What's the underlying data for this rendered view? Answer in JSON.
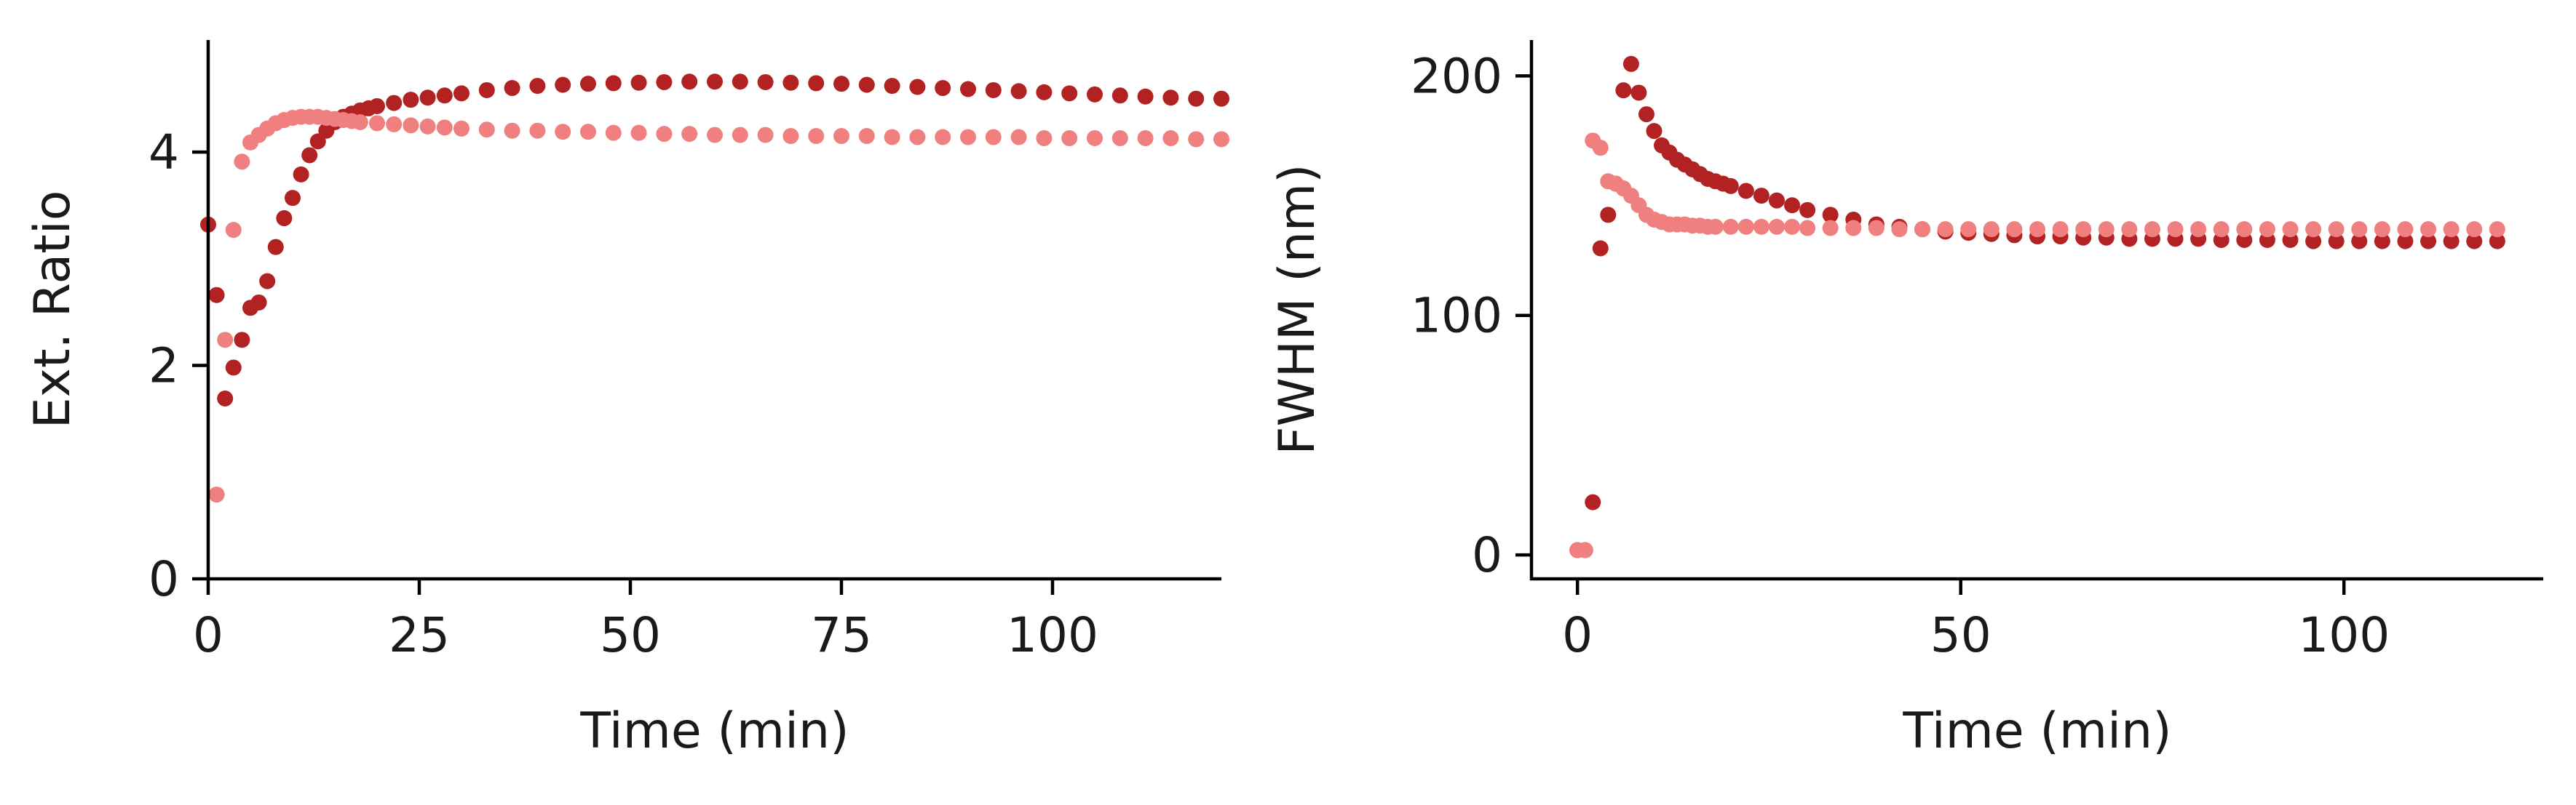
{
  "colors": {
    "series_a": "#b22222",
    "series_b": "#f08080",
    "axes": "#000000",
    "background": "#ffffff"
  },
  "chart_data": [
    {
      "type": "scatter",
      "xlabel": "Time (min)",
      "ylabel": "Ext. Ratio",
      "xlim": [
        0,
        120
      ],
      "ylim": [
        0,
        5.05
      ],
      "xticks": [
        0,
        25,
        50,
        75,
        100
      ],
      "yticks": [
        0,
        2,
        4
      ],
      "xtick_labels": [
        "0",
        "25",
        "50",
        "75",
        "100"
      ],
      "ytick_labels": [
        "0",
        "2",
        "4"
      ],
      "grid": false,
      "legend": "none",
      "series": [
        {
          "color": "#b22222",
          "x": [
            0,
            1,
            2,
            3,
            4,
            5,
            6,
            7,
            8,
            9,
            10,
            11,
            12,
            13,
            14,
            15,
            16,
            17,
            18,
            19,
            20,
            22,
            24,
            26,
            28,
            30,
            33,
            36,
            39,
            42,
            45,
            48,
            51,
            54,
            57,
            60,
            63,
            66,
            69,
            72,
            75,
            78,
            81,
            84,
            87,
            90,
            93,
            96,
            99,
            102,
            105,
            108,
            111,
            114,
            117,
            120
          ],
          "y": [
            3.32,
            2.66,
            1.69,
            1.98,
            2.24,
            2.54,
            2.59,
            2.79,
            3.11,
            3.38,
            3.57,
            3.79,
            3.97,
            4.1,
            4.2,
            4.28,
            4.33,
            4.36,
            4.39,
            4.41,
            4.43,
            4.46,
            4.49,
            4.51,
            4.53,
            4.55,
            4.58,
            4.6,
            4.62,
            4.63,
            4.64,
            4.645,
            4.65,
            4.655,
            4.66,
            4.66,
            4.66,
            4.655,
            4.65,
            4.645,
            4.64,
            4.63,
            4.62,
            4.61,
            4.6,
            4.59,
            4.58,
            4.57,
            4.56,
            4.55,
            4.54,
            4.53,
            4.52,
            4.51,
            4.5,
            4.5
          ]
        },
        {
          "color": "#f08080",
          "x": [
            1,
            2,
            3,
            4,
            5,
            6,
            7,
            8,
            9,
            10,
            11,
            12,
            13,
            14,
            15,
            16,
            17,
            18,
            20,
            22,
            24,
            26,
            28,
            30,
            33,
            36,
            39,
            42,
            45,
            48,
            51,
            54,
            57,
            60,
            63,
            66,
            69,
            72,
            75,
            78,
            81,
            84,
            87,
            90,
            93,
            96,
            99,
            102,
            105,
            108,
            111,
            114,
            117,
            120
          ],
          "y": [
            0.79,
            2.24,
            3.27,
            3.91,
            4.09,
            4.16,
            4.22,
            4.27,
            4.3,
            4.32,
            4.33,
            4.33,
            4.33,
            4.32,
            4.31,
            4.3,
            4.29,
            4.28,
            4.27,
            4.26,
            4.25,
            4.24,
            4.23,
            4.22,
            4.21,
            4.2,
            4.2,
            4.19,
            4.19,
            4.18,
            4.18,
            4.17,
            4.17,
            4.16,
            4.16,
            4.16,
            4.15,
            4.15,
            4.15,
            4.15,
            4.14,
            4.14,
            4.14,
            4.14,
            4.14,
            4.14,
            4.13,
            4.13,
            4.13,
            4.13,
            4.13,
            4.13,
            4.12,
            4.12
          ]
        }
      ]
    },
    {
      "type": "scatter",
      "xlabel": "Time (min)",
      "ylabel": "FWHM (nm)",
      "xlim": [
        -6,
        126
      ],
      "ylim": [
        -10,
        215
      ],
      "xticks": [
        0,
        50,
        100
      ],
      "yticks": [
        0,
        100,
        200
      ],
      "xtick_labels": [
        "0",
        "50",
        "100"
      ],
      "ytick_labels": [
        "0",
        "100",
        "200"
      ],
      "grid": false,
      "legend": "none",
      "series": [
        {
          "color": "#b22222",
          "x": [
            0,
            1,
            2,
            3,
            4,
            5,
            6,
            7,
            8,
            9,
            10,
            11,
            12,
            13,
            14,
            15,
            16,
            17,
            18,
            19,
            20,
            22,
            24,
            26,
            28,
            30,
            33,
            36,
            39,
            42,
            45,
            48,
            51,
            54,
            57,
            60,
            63,
            66,
            69,
            72,
            75,
            78,
            81,
            84,
            87,
            90,
            93,
            96,
            99,
            102,
            105,
            108,
            111,
            114,
            117,
            120
          ],
          "y": [
            2,
            2,
            22,
            128,
            142,
            155,
            194,
            205,
            193,
            184,
            177,
            171,
            168,
            165,
            163,
            161,
            159,
            157,
            156,
            155,
            154,
            152,
            150,
            148,
            146,
            144,
            142,
            140,
            138,
            137,
            136,
            135,
            134.5,
            134,
            133.5,
            133,
            133,
            132.5,
            132.5,
            132,
            132,
            132,
            132,
            131.5,
            131.5,
            131.5,
            131.5,
            131,
            131,
            131,
            131,
            131,
            131,
            131,
            131,
            131
          ]
        },
        {
          "color": "#f08080",
          "x": [
            0,
            1,
            2,
            3,
            4,
            5,
            6,
            7,
            8,
            9,
            10,
            11,
            12,
            13,
            14,
            15,
            16,
            17,
            18,
            20,
            22,
            24,
            26,
            28,
            30,
            33,
            36,
            39,
            42,
            45,
            48,
            51,
            54,
            57,
            60,
            63,
            66,
            69,
            72,
            75,
            78,
            81,
            84,
            87,
            90,
            93,
            96,
            99,
            102,
            105,
            108,
            111,
            114,
            117,
            120
          ],
          "y": [
            2,
            2,
            173,
            170,
            156,
            155,
            153,
            150,
            146,
            142,
            140,
            139,
            138,
            138,
            138,
            137.5,
            137.5,
            137,
            137,
            137,
            137,
            137,
            137,
            137,
            136.5,
            136.5,
            136.5,
            136.5,
            136,
            136,
            136,
            136,
            136,
            136,
            136,
            136,
            136,
            136,
            136,
            136,
            136,
            136,
            136,
            136,
            136,
            136,
            136,
            136,
            136,
            136,
            136,
            136,
            136,
            136,
            136
          ]
        }
      ]
    }
  ]
}
